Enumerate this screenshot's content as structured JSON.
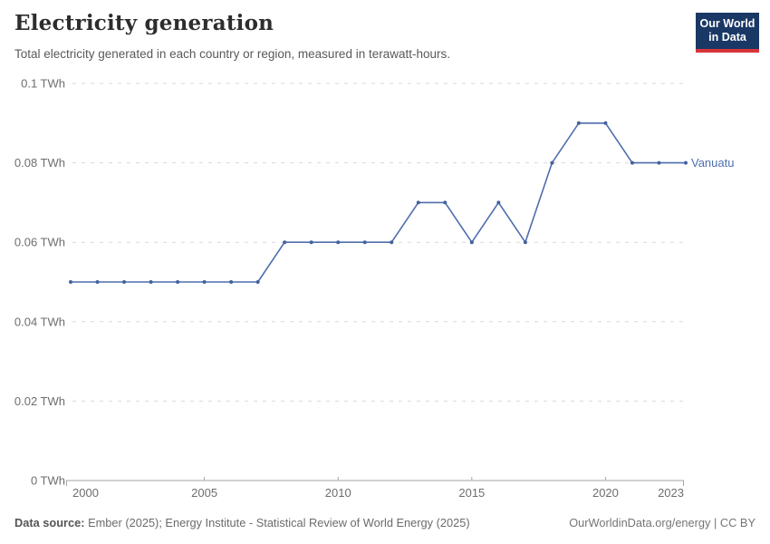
{
  "header": {
    "title": "Electricity generation",
    "subtitle": "Total electricity generated in each country or region, measured in terawatt-hours.",
    "logo": {
      "line1": "Our World",
      "line2": "in Data"
    }
  },
  "chart_data": {
    "type": "line",
    "title": "Electricity generation",
    "unit": "TWh",
    "grid": "horizontal dashed",
    "legend_position": "end-of-line label",
    "x": [
      2000,
      2001,
      2002,
      2003,
      2004,
      2005,
      2006,
      2007,
      2008,
      2009,
      2010,
      2011,
      2012,
      2013,
      2014,
      2015,
      2016,
      2017,
      2018,
      2019,
      2020,
      2021,
      2022,
      2023
    ],
    "series": [
      {
        "name": "Vanuatu",
        "values": [
          0.05,
          0.05,
          0.05,
          0.05,
          0.05,
          0.05,
          0.05,
          0.05,
          0.06,
          0.06,
          0.06,
          0.06,
          0.06,
          0.07,
          0.07,
          0.06,
          0.07,
          0.06,
          0.08,
          0.09,
          0.09,
          0.08,
          0.08,
          0.08
        ]
      }
    ],
    "xlim": [
      2000,
      2023
    ],
    "ylim": [
      0,
      0.1
    ],
    "xticks": [
      2000,
      2005,
      2010,
      2015,
      2020,
      2023
    ],
    "yticks": [
      0,
      0.02,
      0.04,
      0.06,
      0.08,
      0.1
    ],
    "ytick_labels": [
      "0 TWh",
      "0.02 TWh",
      "0.04 TWh",
      "0.06 TWh",
      "0.08 TWh",
      "0.1 TWh"
    ]
  },
  "footer": {
    "datasource_label": "Data source:",
    "datasource_text": " Ember (2025); Energy Institute - Statistical Review of World Energy (2025)",
    "right_text": "OurWorldinData.org/energy | CC BY"
  },
  "colors": {
    "line": "#4e6ead",
    "marker": "#44619e",
    "grid": "#d9d9d9",
    "axis": "#a5a5a5",
    "tick_label": "#6e6e6e",
    "series_label": "#4e6ead",
    "logo_bg": "#1a3866",
    "logo_red": "#d8353b"
  }
}
